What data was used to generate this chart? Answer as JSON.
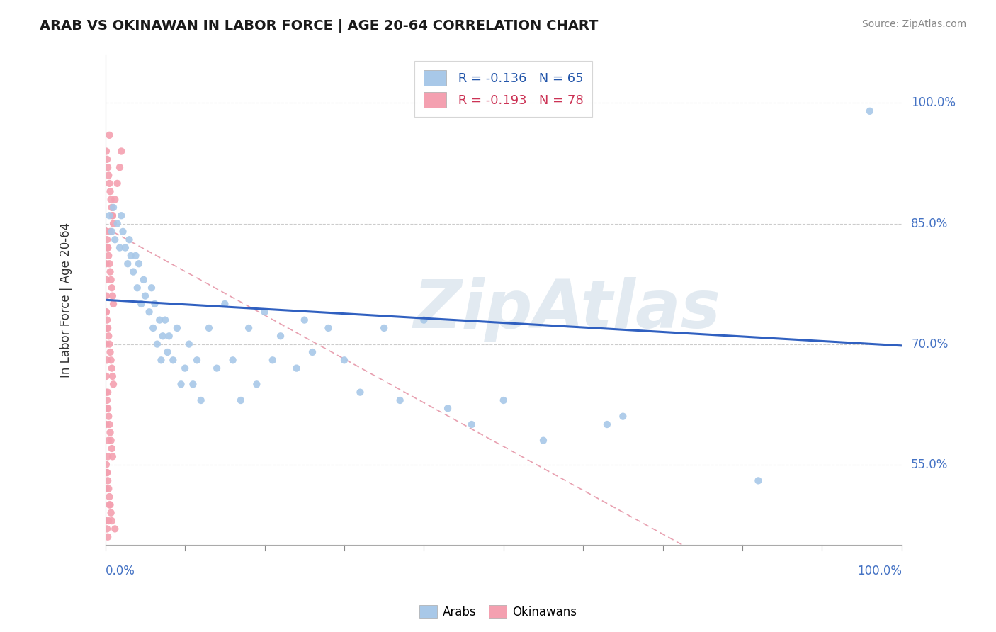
{
  "title": "ARAB VS OKINAWAN IN LABOR FORCE | AGE 20-64 CORRELATION CHART",
  "source": "Source: ZipAtlas.com",
  "ylabel": "In Labor Force | Age 20-64",
  "xlim": [
    0.0,
    1.0
  ],
  "ylim": [
    0.45,
    1.06
  ],
  "y_ticks": [
    0.55,
    0.7,
    0.85,
    1.0
  ],
  "y_tick_labels": [
    "55.0%",
    "70.0%",
    "85.0%",
    "100.0%"
  ],
  "legend_arab_r": "R = -0.136",
  "legend_arab_n": "N = 65",
  "legend_okin_r": "R = -0.193",
  "legend_okin_n": "N = 78",
  "arab_color": "#a8c8e8",
  "okin_color": "#f4a0b0",
  "trendline_arab_color": "#3060c0",
  "trendline_okin_color": "#e8a0b0",
  "watermark": "ZipAtlas",
  "arab_x": [
    0.005,
    0.008,
    0.01,
    0.012,
    0.015,
    0.018,
    0.02,
    0.022,
    0.025,
    0.028,
    0.03,
    0.032,
    0.035,
    0.038,
    0.04,
    0.042,
    0.045,
    0.048,
    0.05,
    0.055,
    0.058,
    0.06,
    0.062,
    0.065,
    0.068,
    0.07,
    0.072,
    0.075,
    0.078,
    0.08,
    0.085,
    0.09,
    0.095,
    0.1,
    0.105,
    0.11,
    0.115,
    0.12,
    0.13,
    0.14,
    0.15,
    0.16,
    0.17,
    0.18,
    0.19,
    0.2,
    0.21,
    0.22,
    0.24,
    0.25,
    0.26,
    0.28,
    0.3,
    0.32,
    0.35,
    0.37,
    0.4,
    0.43,
    0.46,
    0.5,
    0.55,
    0.63,
    0.82,
    0.96,
    0.65
  ],
  "arab_y": [
    0.86,
    0.84,
    0.87,
    0.83,
    0.85,
    0.82,
    0.86,
    0.84,
    0.82,
    0.8,
    0.83,
    0.81,
    0.79,
    0.81,
    0.77,
    0.8,
    0.75,
    0.78,
    0.76,
    0.74,
    0.77,
    0.72,
    0.75,
    0.7,
    0.73,
    0.68,
    0.71,
    0.73,
    0.69,
    0.71,
    0.68,
    0.72,
    0.65,
    0.67,
    0.7,
    0.65,
    0.68,
    0.63,
    0.72,
    0.67,
    0.75,
    0.68,
    0.63,
    0.72,
    0.65,
    0.74,
    0.68,
    0.71,
    0.67,
    0.73,
    0.69,
    0.72,
    0.68,
    0.64,
    0.72,
    0.63,
    0.73,
    0.62,
    0.6,
    0.63,
    0.58,
    0.6,
    0.53,
    0.99,
    0.61
  ],
  "okin_x": [
    0.001,
    0.002,
    0.003,
    0.004,
    0.005,
    0.006,
    0.007,
    0.008,
    0.009,
    0.01,
    0.001,
    0.002,
    0.003,
    0.004,
    0.005,
    0.006,
    0.007,
    0.008,
    0.009,
    0.01,
    0.001,
    0.002,
    0.003,
    0.004,
    0.005,
    0.006,
    0.007,
    0.008,
    0.009,
    0.01,
    0.001,
    0.002,
    0.003,
    0.004,
    0.005,
    0.006,
    0.007,
    0.008,
    0.009,
    0.001,
    0.002,
    0.003,
    0.004,
    0.005,
    0.006,
    0.007,
    0.001,
    0.002,
    0.003,
    0.004,
    0.005,
    0.001,
    0.002,
    0.003,
    0.004,
    0.001,
    0.002,
    0.003,
    0.001,
    0.002,
    0.001,
    0.002,
    0.001,
    0.001,
    0.001,
    0.001,
    0.003,
    0.006,
    0.009,
    0.012,
    0.015,
    0.018,
    0.02,
    0.012,
    0.005,
    0.008
  ],
  "okin_y": [
    0.94,
    0.93,
    0.92,
    0.91,
    0.9,
    0.89,
    0.88,
    0.87,
    0.86,
    0.85,
    0.84,
    0.83,
    0.82,
    0.81,
    0.8,
    0.79,
    0.78,
    0.77,
    0.76,
    0.75,
    0.74,
    0.73,
    0.72,
    0.71,
    0.7,
    0.69,
    0.68,
    0.67,
    0.66,
    0.65,
    0.64,
    0.63,
    0.62,
    0.61,
    0.6,
    0.59,
    0.58,
    0.57,
    0.56,
    0.55,
    0.54,
    0.53,
    0.52,
    0.51,
    0.5,
    0.49,
    0.48,
    0.47,
    0.46,
    0.48,
    0.5,
    0.52,
    0.54,
    0.56,
    0.58,
    0.6,
    0.62,
    0.64,
    0.66,
    0.68,
    0.7,
    0.72,
    0.74,
    0.76,
    0.78,
    0.8,
    0.82,
    0.84,
    0.86,
    0.88,
    0.9,
    0.92,
    0.94,
    0.47,
    0.96,
    0.48
  ]
}
